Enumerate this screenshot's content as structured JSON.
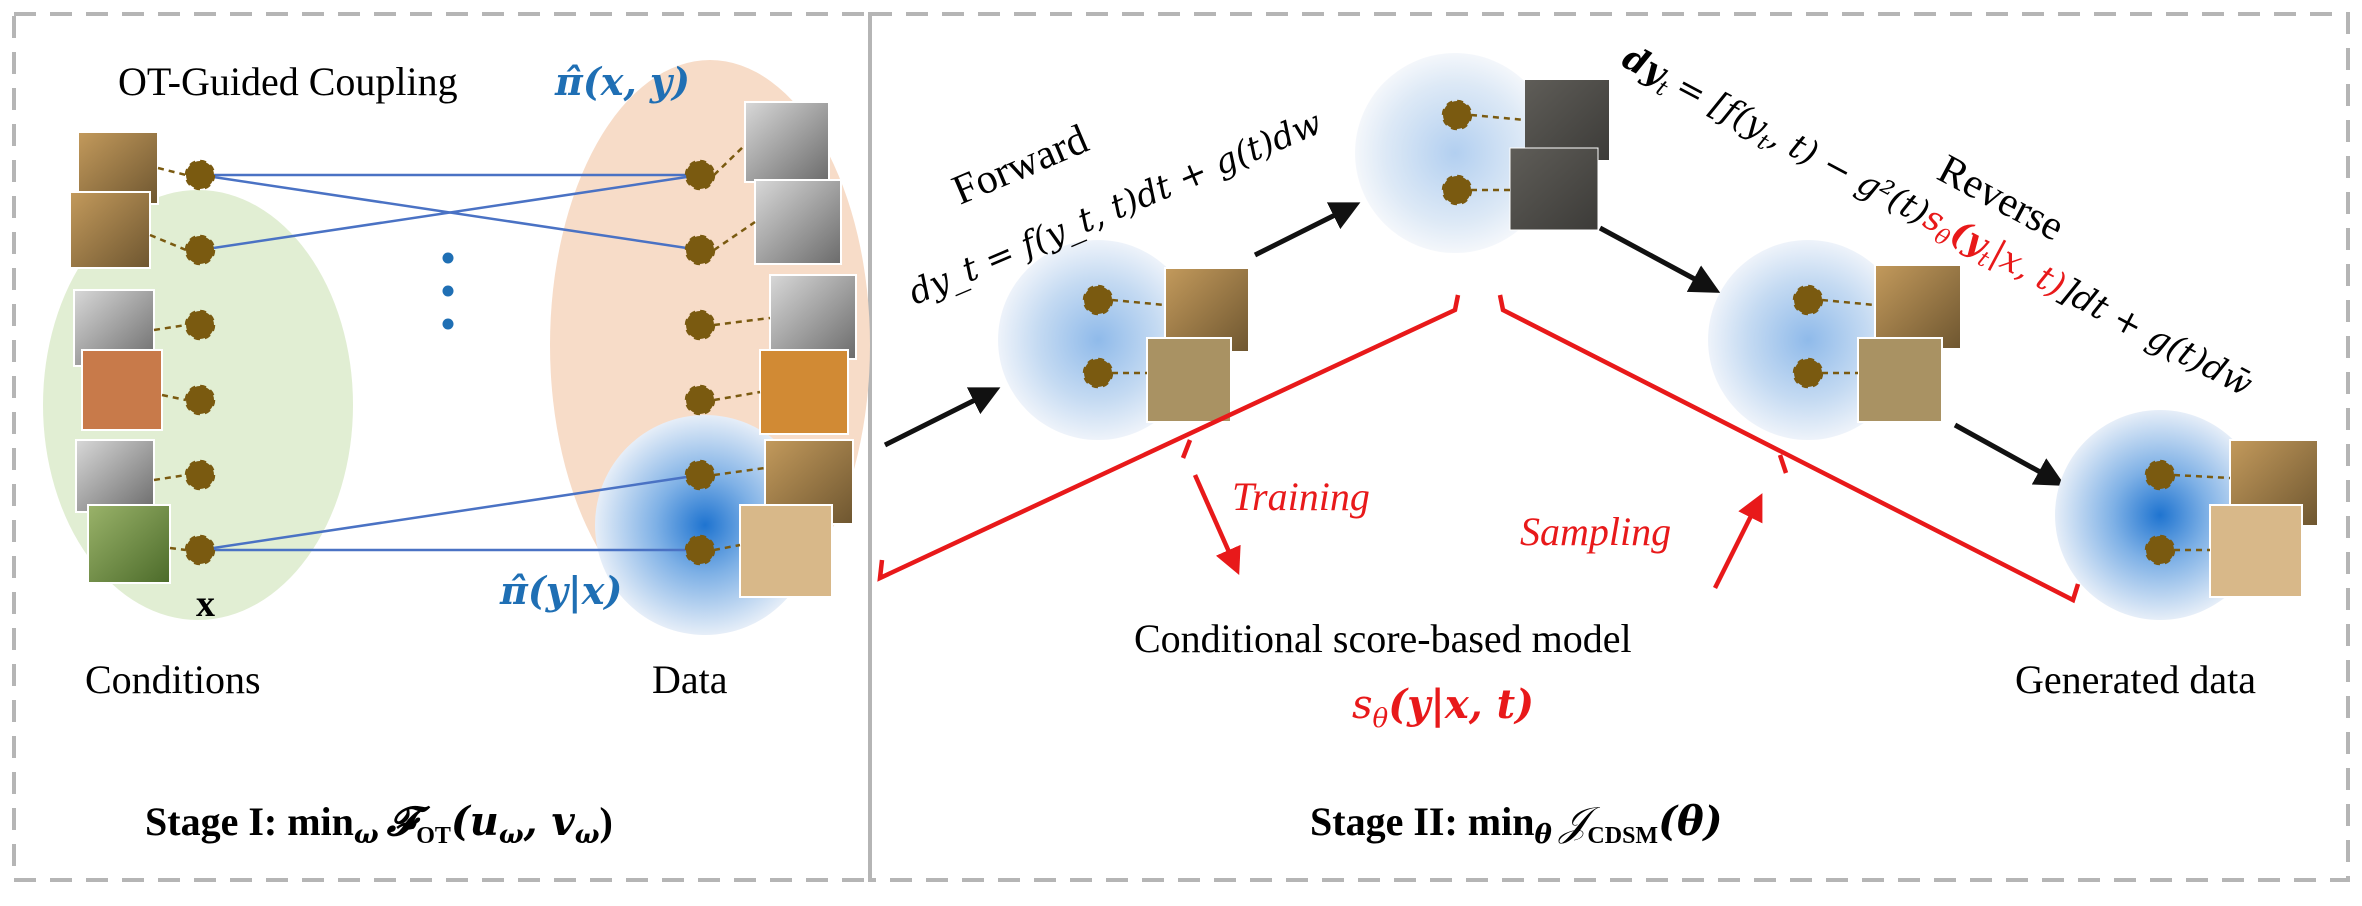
{
  "stage1": {
    "coupling_label": "OT-Guided Coupling",
    "coupling_symbol": "π̂(x, y)",
    "conditional_symbol": "π̂(y|x)",
    "x_label": "x",
    "conditions_label": "Conditions",
    "data_label": "Data",
    "ellipsis": "⋮",
    "objective_prefix": "Stage I: min",
    "objective_sub": "ω",
    "objective_body": "𝓕",
    "objective_body_sub": "OT",
    "objective_args": "(u",
    "objective_args_2": ", v",
    "objective_args_close": ")",
    "condition_images": [
      "leopard",
      "cheetah",
      "fox",
      "red-fox",
      "tabby-cat",
      "black-white-cat"
    ],
    "data_images": [
      "wolf",
      "grey-wolf",
      "white-tiger",
      "tiger",
      "lion",
      "lioness"
    ]
  },
  "stage2": {
    "forward_label": "Forward",
    "forward_eq": "dy_t = f(y_t, t)dt + g(t)dw",
    "reverse_label": "Reverse",
    "reverse_eq_a": "dy",
    "reverse_eq_b": "= [f(y",
    "reverse_eq_c": ", t) − g²(t)",
    "reverse_eq_score": "s",
    "reverse_eq_score_args": "(y",
    "reverse_eq_score_rest": "|x, t)",
    "reverse_eq_d": "]dt + g(t)dw̄",
    "training_label": "Training",
    "sampling_label": "Sampling",
    "model_label": "Conditional score-based model",
    "model_symbol": "s",
    "model_symbol_rest": "(y|x, t)",
    "generated_label": "Generated data",
    "objective_prefix": "Stage II: min",
    "objective_sub": "θ",
    "objective_body": "𝒥",
    "objective_body_sub": "CDSM",
    "objective_args": "(θ)"
  },
  "colors": {
    "dashed_border": "#b5b5b5",
    "green_ellipse": "#e1eed3",
    "orange_ellipse": "#f7dcc8",
    "node": "#7a5a10",
    "coupling_line": "#4a72c4",
    "blue_text": "#1f6fb4",
    "red": "#e8191a",
    "blob": "#3f8fd8"
  }
}
